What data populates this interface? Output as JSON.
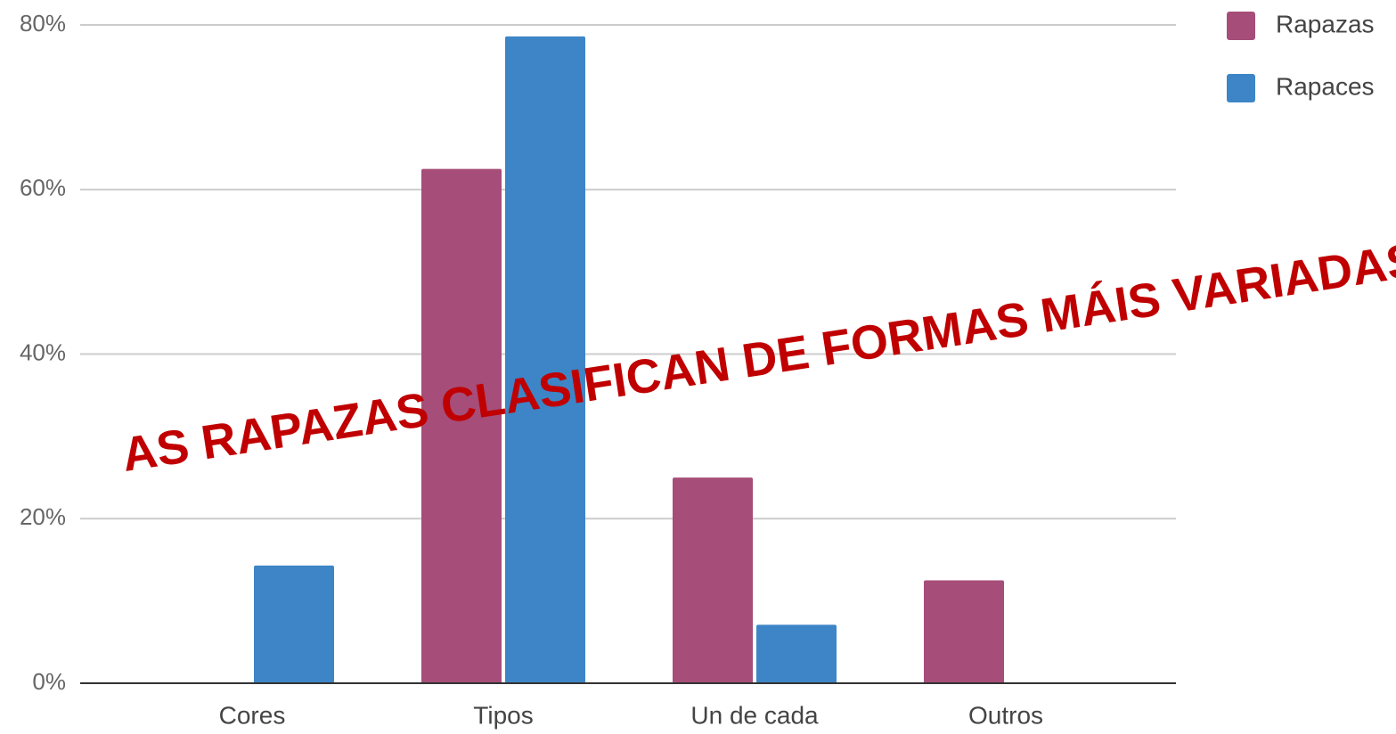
{
  "chart_data": {
    "type": "bar",
    "categories": [
      "Cores",
      "Tipos",
      "Un de cada",
      "Outros"
    ],
    "series": [
      {
        "name": "Rapazas",
        "color": "#a64d79",
        "values": [
          0,
          62.5,
          25,
          12.5
        ]
      },
      {
        "name": "Rapaces",
        "color": "#3d85c6",
        "values": [
          14.3,
          78.6,
          7.1,
          0
        ]
      }
    ],
    "ylim": [
      0,
      80
    ],
    "yticks": [
      {
        "value": 0,
        "label": "0%"
      },
      {
        "value": 20,
        "label": "20%"
      },
      {
        "value": 40,
        "label": "40%"
      },
      {
        "value": 60,
        "label": "60%"
      },
      {
        "value": 80,
        "label": "80%"
      }
    ],
    "grid": true,
    "legend": "top-right",
    "annotation": "AS RAPAZAS CLASIFICAN DE FORMAS MÁIS VARIADAS"
  }
}
